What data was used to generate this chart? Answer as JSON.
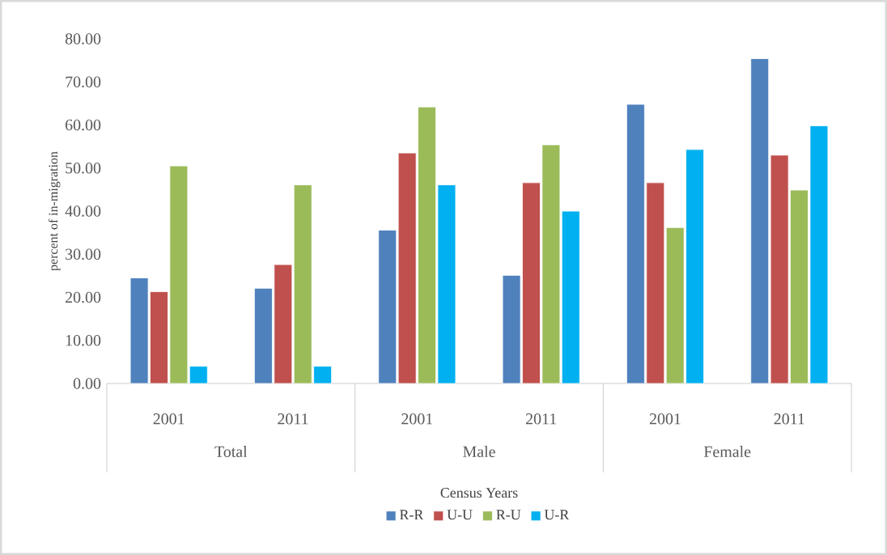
{
  "chart_data": {
    "type": "bar",
    "ylabel": "percent of in-migration",
    "xlabel": "Census Years",
    "categories": [
      "2001",
      "2011",
      "2001",
      "2011",
      "2001",
      "2011"
    ],
    "annotations": [
      "Total",
      "Male",
      "Female"
    ],
    "series": [
      {
        "name": "R-R",
        "color": "#4f81bd",
        "values": [
          24.5,
          22.1,
          35.6,
          25.1,
          64.8,
          75.4
        ]
      },
      {
        "name": "U-U",
        "color": "#c0504d",
        "values": [
          21.3,
          27.6,
          53.5,
          46.6,
          46.6,
          53.0
        ]
      },
      {
        "name": "R-U",
        "color": "#9bbb59",
        "values": [
          50.5,
          46.1,
          64.2,
          55.4,
          36.2,
          44.9
        ]
      },
      {
        "name": "U-R",
        "color": "#00b0f0",
        "values": [
          4.0,
          4.0,
          46.1,
          40.0,
          54.3,
          59.8
        ]
      }
    ],
    "ylim": [
      0,
      80
    ],
    "yticks": [
      {
        "value": 0,
        "label": "0.00"
      },
      {
        "value": 10,
        "label": "10.00"
      },
      {
        "value": 20,
        "label": "20.00"
      },
      {
        "value": 30,
        "label": "30.00"
      },
      {
        "value": 40,
        "label": "40.00"
      },
      {
        "value": 50,
        "label": "50.00"
      },
      {
        "value": 60,
        "label": "60.00"
      },
      {
        "value": 70,
        "label": "70.00"
      },
      {
        "value": 80,
        "label": "80.00"
      }
    ],
    "grid": false,
    "legend": "bottom"
  }
}
